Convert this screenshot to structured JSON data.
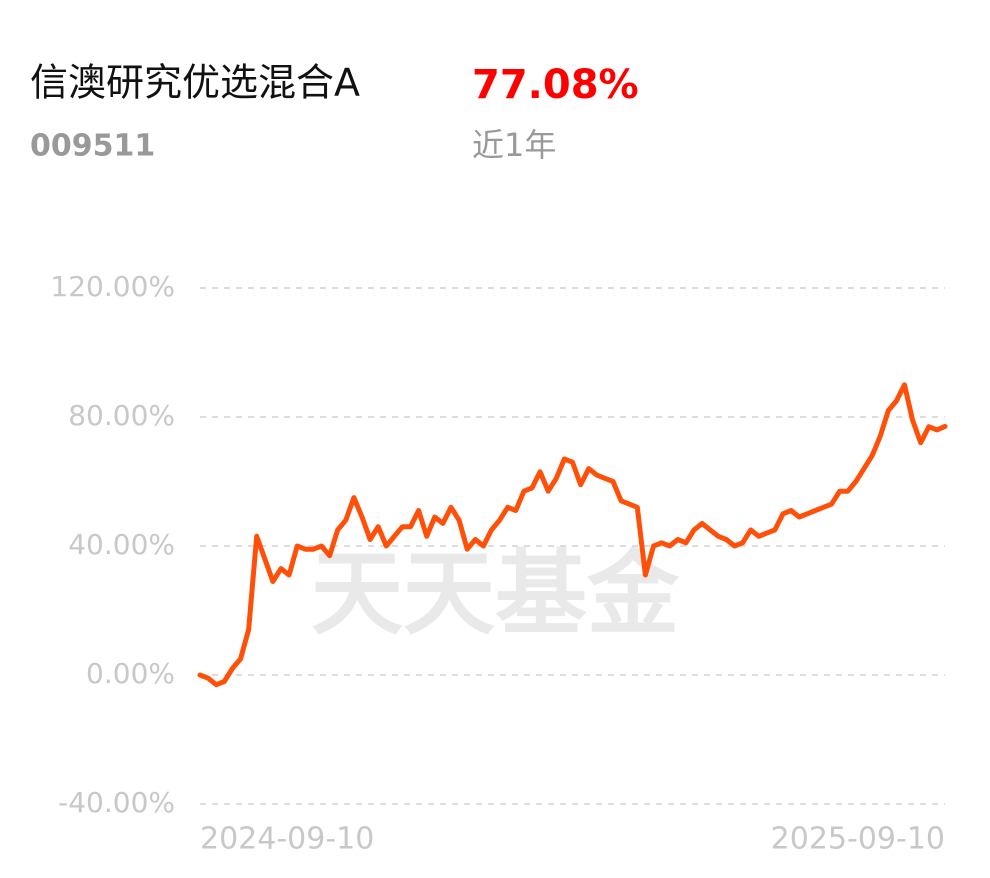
{
  "header": {
    "fund_name": "信澳研究优选混合A",
    "fund_code": "009511",
    "return": "77.08%",
    "period": "近1年"
  },
  "chart_data": {
    "type": "line",
    "watermark": "天天基金",
    "categories": [
      "2024-09-10",
      null,
      null,
      null,
      null,
      null,
      null,
      null,
      null,
      null,
      null,
      null,
      null,
      null,
      null,
      null,
      null,
      null,
      null,
      null,
      null,
      null,
      null,
      null,
      null,
      null,
      null,
      null,
      null,
      null,
      null,
      null,
      null,
      null,
      null,
      null,
      null,
      null,
      null,
      null,
      null,
      null,
      null,
      null,
      null,
      null,
      null,
      null,
      null,
      null,
      null,
      null,
      null,
      null,
      null,
      null,
      null,
      null,
      null,
      null,
      null,
      null,
      null,
      null,
      null,
      null,
      null,
      null,
      null,
      null,
      null,
      null,
      null,
      null,
      null,
      null,
      null,
      null,
      null,
      null,
      null,
      null,
      null,
      null,
      null,
      null,
      null,
      null,
      null,
      null,
      null,
      null,
      "2025-09-10"
    ],
    "series": [
      {
        "color": "#ff5009",
        "values": [
          0,
          -1,
          -3,
          -2,
          2,
          5,
          14,
          43,
          36,
          29,
          33,
          31,
          40,
          39,
          39,
          40,
          37,
          45,
          48,
          55,
          49,
          42,
          46,
          40,
          43,
          46,
          46,
          51,
          43,
          49,
          47,
          52,
          48,
          39,
          42,
          40,
          45,
          48,
          52,
          51,
          57,
          58,
          63,
          57,
          61,
          67,
          66,
          59,
          64,
          62,
          61,
          60,
          54,
          53,
          52,
          31,
          40,
          41,
          40,
          42,
          41,
          45,
          47,
          45,
          43,
          42,
          40,
          41,
          45,
          43,
          44,
          45,
          50,
          51,
          49,
          50,
          51,
          52,
          53,
          57,
          57,
          60,
          64,
          68,
          74,
          82,
          85,
          90,
          79,
          72,
          77,
          76,
          77.08
        ]
      }
    ],
    "ylim": [
      -40,
      120
    ],
    "yticks": [
      {
        "value": -40,
        "label": "-40.00%"
      },
      {
        "value": 0,
        "label": "0.00%"
      },
      {
        "value": 40,
        "label": "40.00%"
      },
      {
        "value": 80,
        "label": "80.00%"
      },
      {
        "value": 120,
        "label": "120.00%"
      }
    ],
    "grid": true
  }
}
